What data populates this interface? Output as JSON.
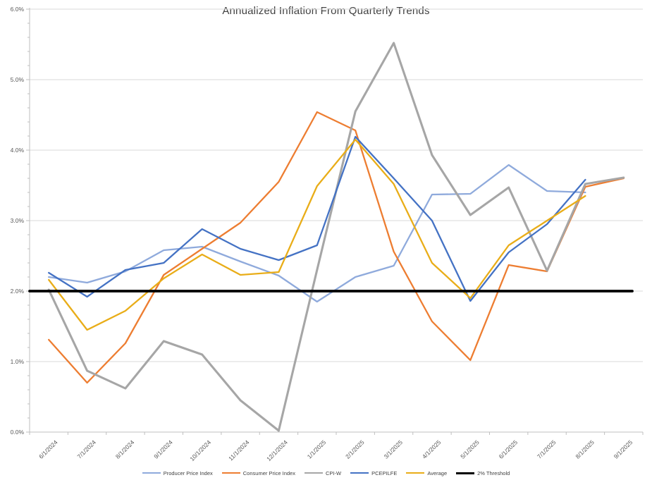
{
  "chart_data": {
    "type": "line",
    "title": "Annualized Inflation From Quarterly Trends",
    "categories": [
      "6/1/2024",
      "7/1/2024",
      "8/1/2024",
      "9/1/2024",
      "10/1/2024",
      "11/1/2024",
      "12/1/2024",
      "1/1/2025",
      "2/1/2025",
      "3/1/2025",
      "4/1/2025",
      "5/1/2025",
      "6/1/2025",
      "7/1/2025",
      "8/1/2025",
      "9/1/2025"
    ],
    "series": [
      {
        "name": "Producer Price Index",
        "color": "#8FAADC",
        "values": [
          2.2,
          2.12,
          2.28,
          2.58,
          2.63,
          2.42,
          2.22,
          1.85,
          2.2,
          2.36,
          3.37,
          3.38,
          3.79,
          3.42,
          3.4,
          null
        ]
      },
      {
        "name": "Consumer Price Index",
        "color": "#ED7D31",
        "values": [
          1.31,
          0.7,
          1.26,
          2.23,
          2.6,
          2.97,
          3.55,
          4.54,
          4.28,
          2.56,
          1.57,
          1.02,
          2.37,
          2.28,
          3.48,
          3.6
        ]
      },
      {
        "name": "CPI-W",
        "color": "#A6A6A6",
        "values": [
          2.02,
          0.87,
          0.62,
          1.29,
          1.1,
          0.45,
          0.02,
          2.3,
          4.55,
          5.52,
          3.93,
          3.08,
          3.47,
          2.29,
          3.52,
          3.61
        ]
      },
      {
        "name": "PCEPILFE",
        "color": "#4472C4",
        "values": [
          2.26,
          1.92,
          2.3,
          2.4,
          2.88,
          2.6,
          2.44,
          2.65,
          4.19,
          3.6,
          3.0,
          1.86,
          2.55,
          2.95,
          3.58,
          null
        ]
      },
      {
        "name": "Average",
        "color": "#E9AD18",
        "values": [
          2.16,
          1.45,
          1.72,
          2.18,
          2.52,
          2.23,
          2.27,
          3.49,
          4.15,
          3.52,
          2.4,
          1.9,
          2.65,
          3.0,
          3.35,
          null
        ]
      },
      {
        "name": "2% Threshold",
        "color": "#000000",
        "values": [
          2.0,
          2.0,
          2.0,
          2.0,
          2.0,
          2.0,
          2.0,
          2.0,
          2.0,
          2.0,
          2.0,
          2.0,
          2.0,
          2.0,
          2.0,
          2.0
        ]
      }
    ],
    "y_axis": {
      "min": 0,
      "max": 6,
      "major": 1,
      "minor": 0.2,
      "tick_labels": [
        "0.0%",
        "1.0%",
        "2.0%",
        "3.0%",
        "4.0%",
        "5.0%",
        "6.0%"
      ]
    },
    "x_axis": {
      "label_rotation": -45
    },
    "legend_position": "bottom",
    "grid": true,
    "gridline_color": "#D9D9D9",
    "axis_color": "#BFBFBF"
  }
}
